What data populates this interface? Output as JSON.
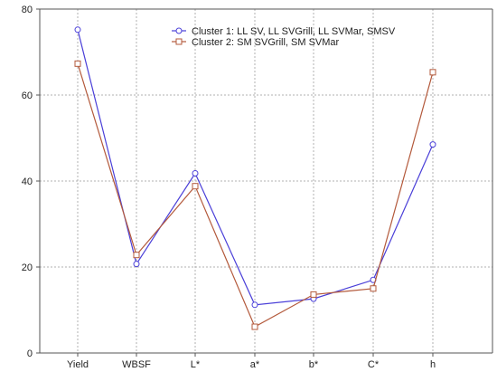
{
  "chart_data": {
    "type": "line",
    "categories": [
      "Yield",
      "WBSF",
      "L*",
      "a*",
      "b*",
      "C*",
      "h"
    ],
    "ylim": [
      0,
      80
    ],
    "yticks": [
      0,
      20,
      40,
      60,
      80
    ],
    "grid": true,
    "legend_position": "top-center",
    "series": [
      {
        "name": "Cluster 1: LL SV, LL SVGrill, LL SVMar, SMSV",
        "values": [
          75.2,
          20.7,
          41.8,
          11.2,
          12.6,
          17.0,
          48.5
        ],
        "color": "#4a3fd8",
        "marker": "circle"
      },
      {
        "name": "Cluster 2: SM SVGrill, SM SVMar",
        "values": [
          67.3,
          22.8,
          38.8,
          6.1,
          13.6,
          15.0,
          65.3
        ],
        "color": "#b3593b",
        "marker": "square"
      }
    ]
  }
}
